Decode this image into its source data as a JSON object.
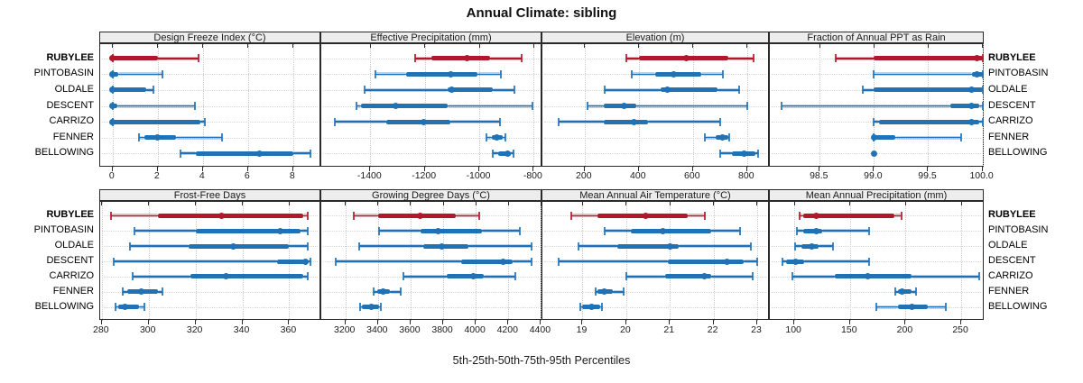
{
  "title": "Annual Climate: sibling",
  "caption": "5th-25th-50th-75th-95th Percentiles",
  "sites": [
    "RUBYLEE",
    "PINTOBASIN",
    "OLDALE",
    "DESCENT",
    "CARRIZO",
    "FENNER",
    "BELLOWING"
  ],
  "highlight_site": "RUBYLEE",
  "colors": {
    "highlight": "#b2182b",
    "normal": "#2171b5",
    "grid": "#c9c9c9",
    "strip_bg": "#ededed",
    "panel_border": "#2a2a2a"
  },
  "percentiles": [
    5,
    25,
    50,
    75,
    95
  ],
  "chart_data": [
    {
      "type": "interval",
      "title": "Design Freeze Index (°C)",
      "row": 0,
      "col": 0,
      "xmin": -0.55,
      "xmax": 9.25,
      "ticks": [
        {
          "v": 0,
          "label": "0"
        },
        {
          "v": 2,
          "label": "2"
        },
        {
          "v": 4,
          "label": "4"
        },
        {
          "v": 6,
          "label": "6"
        },
        {
          "v": 8,
          "label": "8"
        }
      ],
      "series": [
        {
          "site": "RUBYLEE",
          "p": [
            0,
            0,
            0,
            2.0,
            3.8
          ]
        },
        {
          "site": "PINTOBASIN",
          "p": [
            0,
            0,
            0,
            0.25,
            2.2
          ]
        },
        {
          "site": "OLDALE",
          "p": [
            0,
            0,
            0,
            1.5,
            1.8
          ]
        },
        {
          "site": "DESCENT",
          "p": [
            0,
            0,
            0,
            0.2,
            3.65
          ]
        },
        {
          "site": "CARRIZO",
          "p": [
            0,
            0,
            0,
            3.9,
            4.1
          ]
        },
        {
          "site": "FENNER",
          "p": [
            1.15,
            1.4,
            2.0,
            2.8,
            4.85
          ]
        },
        {
          "site": "BELLOWING",
          "p": [
            3.0,
            3.7,
            6.5,
            8.0,
            8.75
          ]
        }
      ]
    },
    {
      "type": "interval",
      "title": "Effective Precipitation (mm)",
      "row": 0,
      "col": 1,
      "xmin": -1580,
      "xmax": -768,
      "ticks": [
        {
          "v": -1400,
          "label": "-1400"
        },
        {
          "v": -1200,
          "label": "-1200"
        },
        {
          "v": -1000,
          "label": "-1000"
        },
        {
          "v": -800,
          "label": "-800"
        }
      ],
      "series": [
        {
          "site": "RUBYLEE",
          "p": [
            -1235,
            -1175,
            -1045,
            -960,
            -845
          ]
        },
        {
          "site": "PINTOBASIN",
          "p": [
            -1380,
            -1270,
            -1105,
            -1005,
            -920
          ]
        },
        {
          "site": "OLDALE",
          "p": [
            -1420,
            -1115,
            -1100,
            -950,
            -870
          ]
        },
        {
          "site": "DESCENT",
          "p": [
            -1450,
            -1435,
            -1305,
            -1115,
            -805
          ]
        },
        {
          "site": "CARRIZO",
          "p": [
            -1530,
            -1340,
            -1205,
            -1105,
            -925
          ]
        },
        {
          "site": "FENNER",
          "p": [
            -975,
            -955,
            -935,
            -915,
            -905
          ]
        },
        {
          "site": "BELLOWING",
          "p": [
            -950,
            -930,
            -895,
            -885,
            -875
          ]
        }
      ]
    },
    {
      "type": "interval",
      "title": "Elevation (m)",
      "row": 0,
      "col": 2,
      "xmin": 44,
      "xmax": 884,
      "ticks": [
        {
          "v": 200,
          "label": "200"
        },
        {
          "v": 400,
          "label": "400"
        },
        {
          "v": 600,
          "label": "600"
        },
        {
          "v": 800,
          "label": "800"
        }
      ],
      "series": [
        {
          "site": "RUBYLEE",
          "p": [
            355,
            400,
            575,
            730,
            825
          ]
        },
        {
          "site": "PINTOBASIN",
          "p": [
            375,
            460,
            530,
            630,
            710
          ]
        },
        {
          "site": "OLDALE",
          "p": [
            275,
            480,
            505,
            690,
            770
          ]
        },
        {
          "site": "DESCENT",
          "p": [
            210,
            270,
            345,
            390,
            800
          ]
        },
        {
          "site": "CARRIZO",
          "p": [
            105,
            272,
            383,
            433,
            700
          ]
        },
        {
          "site": "FENNER",
          "p": [
            645,
            685,
            710,
            730,
            735
          ]
        },
        {
          "site": "BELLOWING",
          "p": [
            700,
            745,
            790,
            830,
            840
          ]
        }
      ]
    },
    {
      "type": "interval",
      "title": "Fraction of Annual PPT as Rain",
      "row": 0,
      "col": 3,
      "xmin": 98.04,
      "xmax": 100.02,
      "ticks": [
        {
          "v": 98.5,
          "label": "98.5"
        },
        {
          "v": 99.0,
          "label": "99.0"
        },
        {
          "v": 99.5,
          "label": "99.5"
        },
        {
          "v": 100.0,
          "label": "100.0"
        }
      ],
      "series": [
        {
          "site": "RUBYLEE",
          "p": [
            98.65,
            99.0,
            99.95,
            100.0,
            100.0
          ]
        },
        {
          "site": "PINTOBASIN",
          "p": [
            99.0,
            99.9,
            99.95,
            100.0,
            100.0
          ]
        },
        {
          "site": "OLDALE",
          "p": [
            98.9,
            99.0,
            99.9,
            100.0,
            100.0
          ]
        },
        {
          "site": "DESCENT",
          "p": [
            98.15,
            99.7,
            99.9,
            99.97,
            100.0
          ]
        },
        {
          "site": "CARRIZO",
          "p": [
            99.0,
            99.05,
            99.9,
            99.97,
            100.0
          ]
        },
        {
          "site": "FENNER",
          "p": [
            99.0,
            99.0,
            99.0,
            99.2,
            99.8
          ]
        },
        {
          "site": "BELLOWING",
          "p": [
            99.0,
            99.0,
            99.0,
            99.0,
            99.0
          ]
        }
      ]
    },
    {
      "type": "interval",
      "title": "Frost-Free Days",
      "row": 1,
      "col": 0,
      "xmin": 279.3,
      "xmax": 373.7,
      "ticks": [
        {
          "v": 280,
          "label": "280"
        },
        {
          "v": 300,
          "label": "300"
        },
        {
          "v": 320,
          "label": "320"
        },
        {
          "v": 340,
          "label": "340"
        },
        {
          "v": 360,
          "label": "360"
        }
      ],
      "series": [
        {
          "site": "RUBYLEE",
          "p": [
            284,
            304,
            331,
            366,
            368
          ]
        },
        {
          "site": "PINTOBASIN",
          "p": [
            294,
            320,
            356,
            365,
            368
          ]
        },
        {
          "site": "OLDALE",
          "p": [
            292,
            317,
            336,
            360,
            368
          ]
        },
        {
          "site": "DESCENT",
          "p": [
            285,
            355,
            367,
            368,
            369
          ]
        },
        {
          "site": "CARRIZO",
          "p": [
            293,
            318,
            333,
            366,
            368
          ]
        },
        {
          "site": "FENNER",
          "p": [
            289,
            291,
            297,
            304,
            306
          ]
        },
        {
          "site": "BELLOWING",
          "p": [
            286,
            287,
            290,
            296,
            298
          ]
        }
      ]
    },
    {
      "type": "interval",
      "title": "Growing Degree Days (°C)",
      "row": 1,
      "col": 1,
      "xmin": 3052,
      "xmax": 4409,
      "ticks": [
        {
          "v": 3200,
          "label": "3200"
        },
        {
          "v": 3400,
          "label": "3400"
        },
        {
          "v": 3600,
          "label": "3600"
        },
        {
          "v": 3800,
          "label": "3800"
        },
        {
          "v": 4000,
          "label": "4000"
        },
        {
          "v": 4200,
          "label": "4200"
        },
        {
          "v": 4400,
          "label": "4400"
        }
      ],
      "series": [
        {
          "site": "RUBYLEE",
          "p": [
            3250,
            3400,
            3660,
            3875,
            4020
          ]
        },
        {
          "site": "PINTOBASIN",
          "p": [
            3405,
            3660,
            3770,
            4040,
            4270
          ]
        },
        {
          "site": "OLDALE",
          "p": [
            3285,
            3680,
            3790,
            3955,
            4345
          ]
        },
        {
          "site": "DESCENT",
          "p": [
            3140,
            3910,
            4170,
            4225,
            4340
          ]
        },
        {
          "site": "CARRIZO",
          "p": [
            3555,
            3820,
            3985,
            4050,
            4245
          ]
        },
        {
          "site": "FENNER",
          "p": [
            3375,
            3395,
            3430,
            3475,
            3540
          ]
        },
        {
          "site": "BELLOWING",
          "p": [
            3290,
            3300,
            3360,
            3405,
            3415
          ]
        }
      ]
    },
    {
      "type": "interval",
      "title": "Mean Annual Air Temperature (°C)",
      "row": 1,
      "col": 2,
      "xmin": 18.08,
      "xmax": 23.29,
      "ticks": [
        {
          "v": 19,
          "label": "19"
        },
        {
          "v": 20,
          "label": "20"
        },
        {
          "v": 21,
          "label": "21"
        },
        {
          "v": 22,
          "label": "22"
        },
        {
          "v": 23,
          "label": "23"
        }
      ],
      "series": [
        {
          "site": "RUBYLEE",
          "p": [
            18.75,
            19.35,
            20.45,
            21.4,
            21.8
          ]
        },
        {
          "site": "PINTOBASIN",
          "p": [
            19.5,
            20.1,
            20.85,
            21.95,
            22.6
          ]
        },
        {
          "site": "OLDALE",
          "p": [
            18.9,
            19.8,
            21.0,
            21.2,
            22.85
          ]
        },
        {
          "site": "DESCENT",
          "p": [
            18.45,
            20.95,
            22.3,
            22.7,
            23.0
          ]
        },
        {
          "site": "CARRIZO",
          "p": [
            20.0,
            20.9,
            21.8,
            21.95,
            22.9
          ]
        },
        {
          "site": "FENNER",
          "p": [
            19.3,
            19.35,
            19.5,
            19.7,
            19.95
          ]
        },
        {
          "site": "BELLOWING",
          "p": [
            18.95,
            19.0,
            19.2,
            19.4,
            19.45
          ]
        }
      ]
    },
    {
      "type": "interval",
      "title": "Mean Annual Precipitation (mm)",
      "row": 1,
      "col": 3,
      "xmin": 78,
      "xmax": 271,
      "ticks": [
        {
          "v": 100,
          "label": "100"
        },
        {
          "v": 150,
          "label": "150"
        },
        {
          "v": 200,
          "label": "200"
        },
        {
          "v": 250,
          "label": "250"
        }
      ],
      "series": [
        {
          "site": "RUBYLEE",
          "p": [
            105,
            108,
            120,
            190,
            196
          ]
        },
        {
          "site": "PINTOBASIN",
          "p": [
            102,
            108,
            120,
            125,
            167
          ]
        },
        {
          "site": "OLDALE",
          "p": [
            101,
            106,
            116,
            122,
            135
          ]
        },
        {
          "site": "DESCENT",
          "p": [
            89,
            93,
            101,
            109,
            167
          ]
        },
        {
          "site": "CARRIZO",
          "p": [
            98,
            136,
            166,
            205,
            266
          ]
        },
        {
          "site": "FENNER",
          "p": [
            191,
            193,
            197,
            205,
            209
          ]
        },
        {
          "site": "BELLOWING",
          "p": [
            174,
            193,
            206,
            220,
            236
          ]
        }
      ]
    }
  ]
}
